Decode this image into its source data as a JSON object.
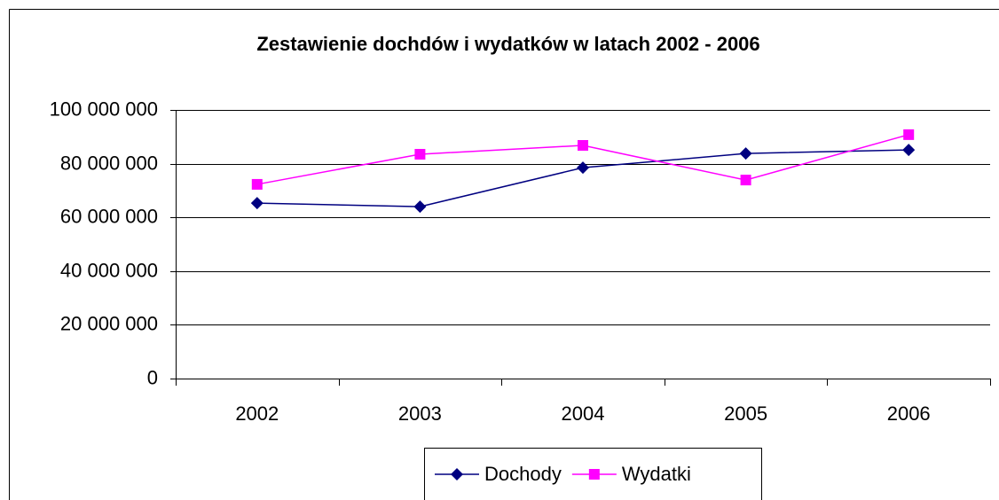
{
  "chart_data": {
    "type": "line",
    "title": "Zestawienie dochdów i wydatków w latach 2002 - 2006",
    "categories": [
      "2002",
      "2003",
      "2004",
      "2005",
      "2006"
    ],
    "series": [
      {
        "name": "Dochody",
        "color": "#000080",
        "marker": "diamond",
        "values": [
          65300000,
          64000000,
          78500000,
          83800000,
          85100000
        ]
      },
      {
        "name": "Wydatki",
        "color": "#ff00ff",
        "marker": "square",
        "values": [
          72300000,
          83500000,
          86800000,
          73900000,
          90800000
        ]
      }
    ],
    "ylim": [
      0,
      100000000
    ],
    "yticks": [
      0,
      {
        "value": 20000000,
        "label": "20 000 000"
      },
      {
        "value": 40000000,
        "label": "40 000 000"
      },
      {
        "value": 60000000,
        "label": "60 000 000"
      },
      {
        "value": 80000000,
        "label": "80 000 000"
      },
      {
        "value": 100000000,
        "label": "100 000 000"
      }
    ],
    "grid": true,
    "legend": "bottom"
  }
}
